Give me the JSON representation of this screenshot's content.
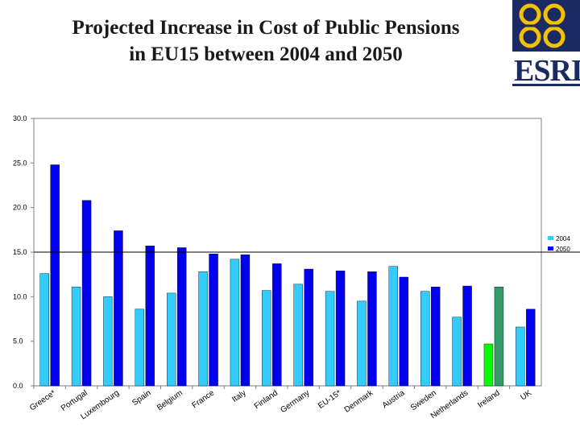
{
  "title_line1": "Projected Increase in Cost of Public Pensions",
  "title_line2": "in EU15 between 2004 and  2050",
  "logo": {
    "text": "ESRI"
  },
  "colors": {
    "series_2004": "#33ccff",
    "series_2050": "#0000ee",
    "highlight_2004": "#00ff00",
    "highlight_2050": "#339966",
    "title": "#1a1a1a",
    "logo_navy": "#1c2a63",
    "logo_gold": "#f2c200"
  },
  "chart_data": {
    "type": "bar",
    "title": "",
    "xlabel": "",
    "ylabel": "",
    "ylim": [
      0,
      30
    ],
    "yticks": [
      "0.0",
      "5.0",
      "10.0",
      "15.0",
      "20.0",
      "25.0",
      "30.0"
    ],
    "reference_line": 15.0,
    "legend_position": "right",
    "categories": [
      "Greece*",
      "Portugal",
      "Luxembourg",
      "Spain",
      "Belgium",
      "France",
      "Italy",
      "Finland",
      "Germany",
      "EU-15*",
      "Denmark",
      "Austria",
      "Sweden",
      "Netherlands",
      "Ireland",
      "UK"
    ],
    "highlight_category": "Ireland",
    "series": [
      {
        "name": "2004",
        "values": [
          12.6,
          11.1,
          10.0,
          8.6,
          10.4,
          12.8,
          14.2,
          10.7,
          11.4,
          10.6,
          9.5,
          13.4,
          10.6,
          7.7,
          4.7,
          6.6
        ]
      },
      {
        "name": "2050",
        "values": [
          24.8,
          20.8,
          17.4,
          15.7,
          15.5,
          14.8,
          14.7,
          13.7,
          13.1,
          12.9,
          12.8,
          12.2,
          11.1,
          11.2,
          11.1,
          8.6
        ]
      }
    ]
  }
}
